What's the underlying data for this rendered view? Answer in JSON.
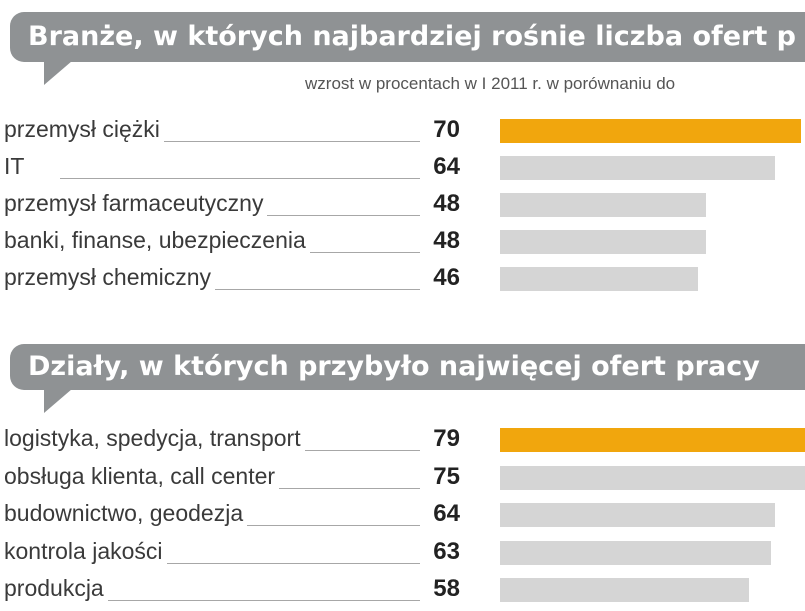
{
  "colors": {
    "banner": "#8f9294",
    "highlight": "#f1a60d",
    "bar": "#d5d5d5"
  },
  "chart_data": [
    {
      "type": "bar",
      "title": "Branże, w których najbardziej rośnie liczba ofert p",
      "subtitle": "wzrost w procentach w I 2011 r. w porównaniu do",
      "categories": [
        "przemysł ciężki",
        "IT",
        "przemysł farmaceutyczny",
        "banki, finanse, ubezpieczenia",
        "przemysł chemiczny"
      ],
      "values": [
        70,
        64,
        48,
        48,
        46
      ],
      "highlight_index": 0
    },
    {
      "type": "bar",
      "title": "Działy, w których przybyło najwięcej ofert pracy",
      "categories": [
        "logistyka, spedycja, transport",
        "obsługa klienta, call center",
        "budownictwo, geodezja",
        "kontrola jakości",
        "produkcja"
      ],
      "values": [
        79,
        75,
        64,
        63,
        58
      ],
      "highlight_index": 0
    }
  ]
}
